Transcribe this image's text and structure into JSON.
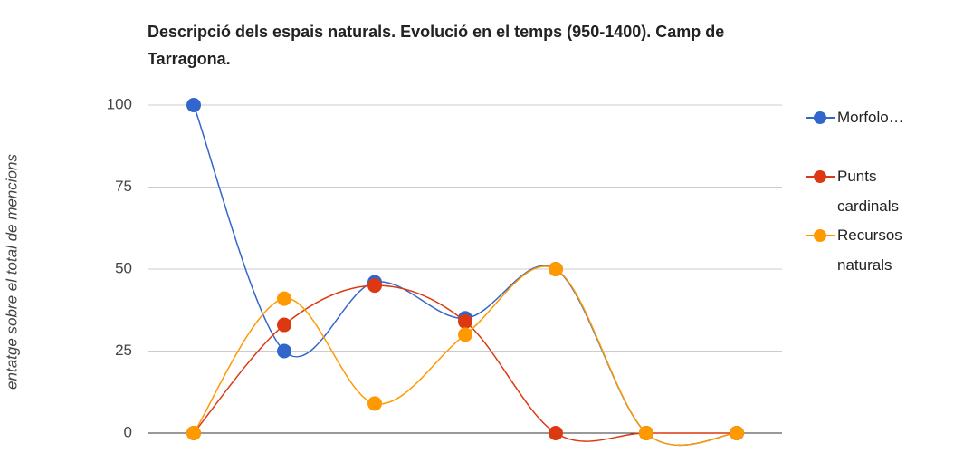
{
  "chart_data": {
    "type": "line",
    "title": "Descripció dels espais naturals. Evolució en el temps (950-1400). Camp de Tarragona.",
    "y_label": "entatge sobre el total de mencions",
    "categories": [
      null,
      null,
      null,
      null,
      null,
      null,
      null
    ],
    "series": [
      {
        "name": "Morfolo…",
        "color": "#3366cc",
        "values": [
          100,
          25,
          46,
          35,
          50,
          0,
          0
        ]
      },
      {
        "name": "Punts cardinals",
        "color": "#dc3912",
        "values": [
          0,
          33,
          45,
          34,
          0,
          0,
          0
        ]
      },
      {
        "name": "Recursos naturals",
        "color": "#ff9900",
        "values": [
          0,
          41,
          9,
          30,
          50,
          0,
          0
        ]
      }
    ],
    "ylim": [
      0,
      100
    ],
    "yticks": [
      0,
      25,
      50,
      75,
      100
    ],
    "grid": true,
    "smooth": true,
    "legend": "right"
  }
}
